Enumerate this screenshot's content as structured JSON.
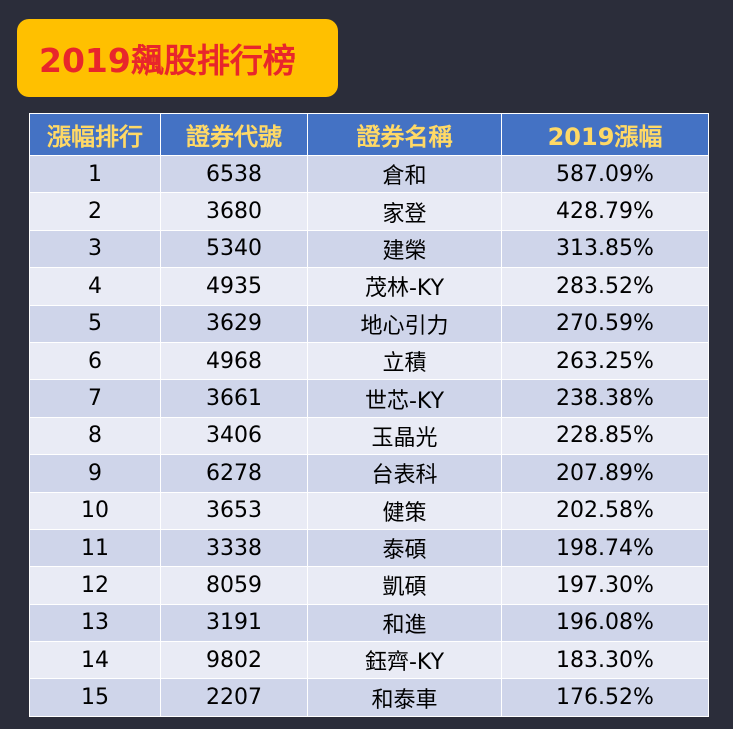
{
  "title": "2019飆股排行榜",
  "colors": {
    "background": "#2b2d3a",
    "title_box": "#ffc000",
    "title_text": "#e8262b",
    "header_bg": "#4472c4",
    "header_text": "#ffd966",
    "row_odd": "#cfd5ea",
    "row_even": "#e9ebf5"
  },
  "table": {
    "headers": [
      "漲幅排行",
      "證券代號",
      "證券名稱",
      "2019漲幅"
    ],
    "rows": [
      [
        "1",
        "6538",
        "倉和",
        "587.09%"
      ],
      [
        "2",
        "3680",
        "家登",
        "428.79%"
      ],
      [
        "3",
        "5340",
        "建榮",
        "313.85%"
      ],
      [
        "4",
        "4935",
        "茂林-KY",
        "283.52%"
      ],
      [
        "5",
        "3629",
        "地心引力",
        "270.59%"
      ],
      [
        "6",
        "4968",
        "立積",
        "263.25%"
      ],
      [
        "7",
        "3661",
        "世芯-KY",
        "238.38%"
      ],
      [
        "8",
        "3406",
        "玉晶光",
        "228.85%"
      ],
      [
        "9",
        "6278",
        "台表科",
        "207.89%"
      ],
      [
        "10",
        "3653",
        "健策",
        "202.58%"
      ],
      [
        "11",
        "3338",
        "泰碩",
        "198.74%"
      ],
      [
        "12",
        "8059",
        "凱碩",
        "197.30%"
      ],
      [
        "13",
        "3191",
        "和進",
        "196.08%"
      ],
      [
        "14",
        "9802",
        "鈺齊-KY",
        "183.30%"
      ],
      [
        "15",
        "2207",
        "和泰車",
        "176.52%"
      ]
    ]
  }
}
